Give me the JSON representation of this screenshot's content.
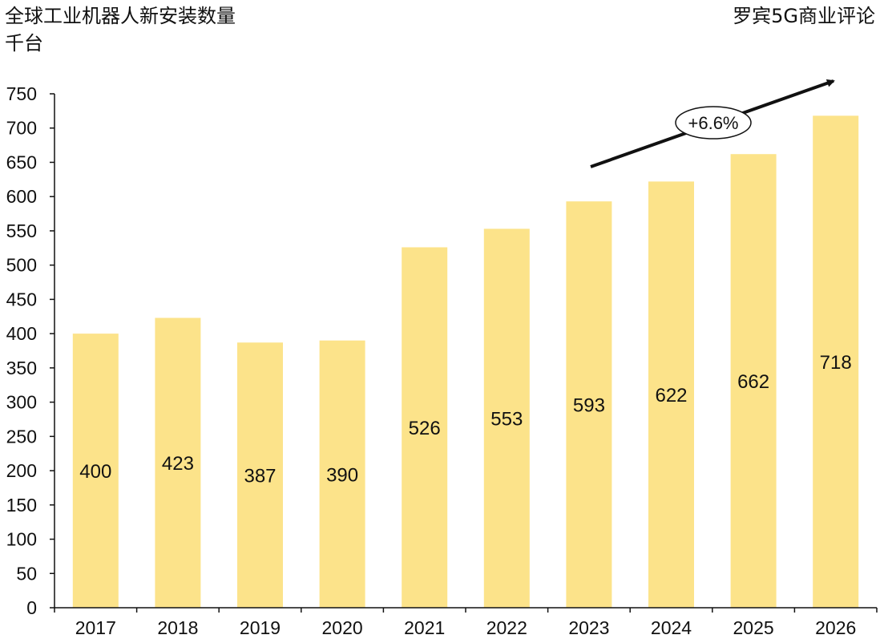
{
  "header": {
    "title": "全球工业机器人新安装数量",
    "unit": "千台",
    "brand": "罗宾5G商业评论"
  },
  "annotation": {
    "cagr": "+6.6%"
  },
  "colors": {
    "bar": "#FCE38A",
    "axis": "#111111",
    "text": "#111111"
  },
  "chart_data": {
    "type": "bar",
    "title": "全球工业机器人新安装数量",
    "ylabel": "千台",
    "categories": [
      "2017",
      "2018",
      "2019",
      "2020",
      "2021",
      "2022",
      "2023",
      "2024",
      "2025",
      "2026"
    ],
    "values": [
      400,
      423,
      387,
      390,
      526,
      553,
      593,
      622,
      662,
      718
    ],
    "ylim": [
      0,
      750
    ],
    "yticks": [
      0,
      50,
      100,
      150,
      200,
      250,
      300,
      350,
      400,
      450,
      500,
      550,
      600,
      650,
      700,
      750
    ],
    "grid": false,
    "legend": "none"
  }
}
